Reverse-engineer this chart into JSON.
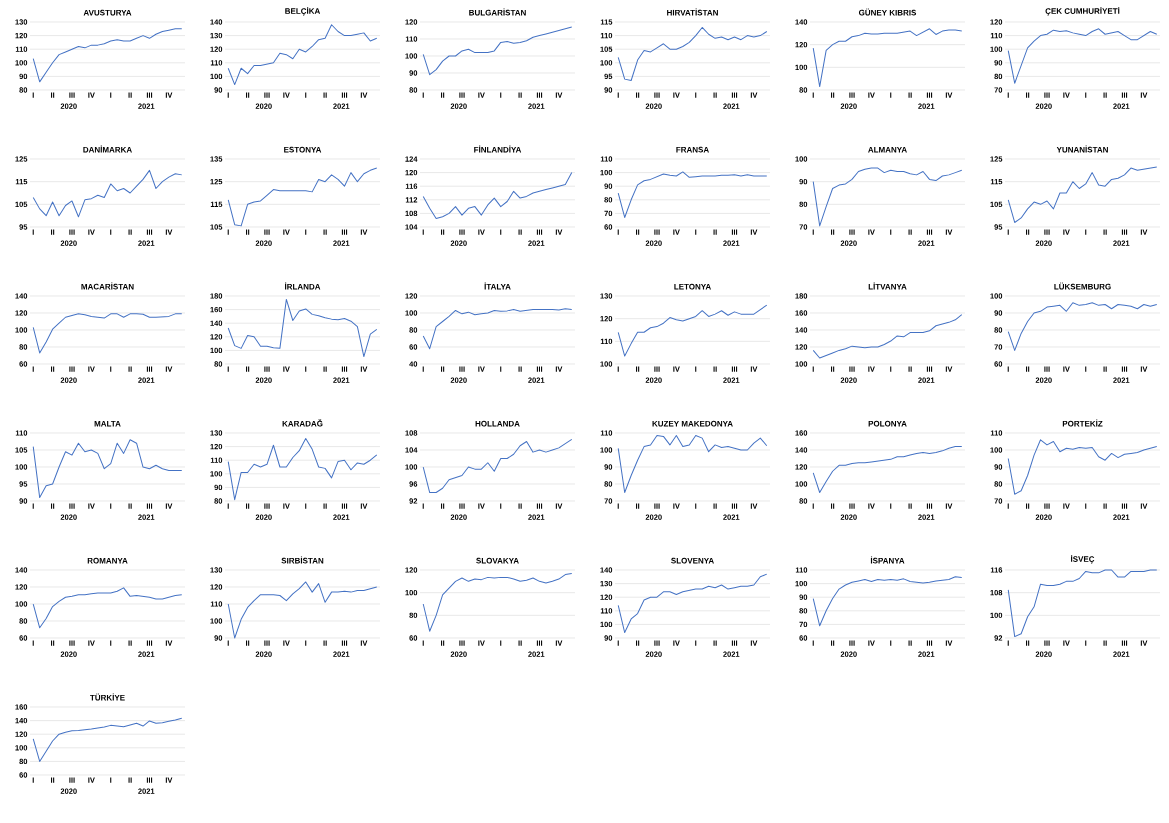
{
  "chart_data": [
    {
      "type": "line",
      "title": "AVUSTURYA",
      "color": "#4472c4",
      "grid": "y",
      "ylim": [
        80,
        130
      ],
      "yticks": [
        80,
        90,
        100,
        110,
        120,
        130
      ],
      "categories": [
        "I",
        null,
        null,
        "II",
        null,
        null,
        "III",
        null,
        null,
        "IV",
        null,
        null,
        "I",
        null,
        null,
        "II",
        null,
        null,
        "III",
        null,
        null,
        "IV",
        null,
        null
      ],
      "annotations": [
        "2020",
        "2021"
      ],
      "values": [
        103,
        86,
        93,
        100,
        106,
        108,
        110,
        112,
        111,
        113,
        113,
        114,
        116,
        117,
        116,
        116,
        118,
        120,
        118,
        121,
        123,
        124,
        125,
        125
      ]
    },
    {
      "type": "line",
      "title": "BELÇİKA",
      "color": "#4472c4",
      "grid": "y",
      "ylim": [
        90,
        140
      ],
      "yticks": [
        90,
        100,
        110,
        120,
        130,
        140
      ],
      "categories": [
        "I",
        null,
        null,
        "II",
        null,
        null,
        "III",
        null,
        null,
        "IV",
        null,
        null,
        "I",
        null,
        null,
        "II",
        null,
        null,
        "III",
        null,
        null,
        "IV",
        null,
        null
      ],
      "annotations": [
        "2020",
        "2021"
      ],
      "values": [
        106,
        94,
        106,
        102,
        108,
        108,
        109,
        110,
        117,
        116,
        113,
        120,
        118,
        122,
        127,
        128,
        138,
        133,
        130,
        130,
        131,
        132,
        126,
        128
      ]
    },
    {
      "type": "line",
      "title": "BULGARİSTAN",
      "color": "#4472c4",
      "grid": "y",
      "ylim": [
        80,
        120
      ],
      "yticks": [
        80,
        90,
        100,
        110,
        120
      ],
      "categories": [
        "I",
        null,
        null,
        "II",
        null,
        null,
        "III",
        null,
        null,
        "IV",
        null,
        null,
        "I",
        null,
        null,
        "II",
        null,
        null,
        "III",
        null,
        null,
        "IV",
        null,
        null
      ],
      "annotations": [
        "2020",
        "2021"
      ],
      "values": [
        101,
        89,
        92,
        97,
        100,
        100,
        103,
        104,
        102,
        102,
        102,
        103,
        108,
        108.5,
        107.5,
        108,
        109,
        111,
        112,
        113,
        114,
        115,
        116,
        117
      ]
    },
    {
      "type": "line",
      "title": "HIRVATİSTAN",
      "color": "#4472c4",
      "grid": "y",
      "ylim": [
        90,
        115
      ],
      "yticks": [
        90,
        95,
        100,
        105,
        110,
        115
      ],
      "categories": [
        "I",
        null,
        null,
        "II",
        null,
        null,
        "III",
        null,
        null,
        "IV",
        null,
        null,
        "I",
        null,
        null,
        "II",
        null,
        null,
        "III",
        null,
        null,
        "IV",
        null,
        null
      ],
      "annotations": [
        "2020",
        "2021"
      ],
      "values": [
        102,
        94,
        93.5,
        101,
        104.5,
        104,
        105.5,
        107,
        105,
        105,
        106,
        107.5,
        110,
        113,
        110.5,
        109,
        109.5,
        108.5,
        109.5,
        108.5,
        110,
        109.5,
        110,
        111.5
      ]
    },
    {
      "type": "line",
      "title": "GÜNEY KIBRIS",
      "color": "#4472c4",
      "grid": "y",
      "ylim": [
        80,
        140
      ],
      "yticks": [
        80,
        100,
        120,
        140
      ],
      "categories": [
        "I",
        null,
        null,
        "II",
        null,
        null,
        "III",
        null,
        null,
        "IV",
        null,
        null,
        "I",
        null,
        null,
        "II",
        null,
        null,
        "III",
        null,
        null,
        "IV",
        null,
        null
      ],
      "annotations": [
        "2020",
        "2021"
      ],
      "values": [
        117,
        83,
        115,
        120,
        123,
        123,
        127,
        128,
        130,
        129.5,
        129.5,
        130,
        130,
        130,
        131,
        132,
        128,
        131,
        134,
        129,
        132,
        133,
        133,
        132
      ]
    },
    {
      "type": "line",
      "title": "ÇEK CUMHURİYETİ",
      "color": "#4472c4",
      "grid": "y",
      "ylim": [
        70,
        120
      ],
      "yticks": [
        70,
        80,
        90,
        100,
        110,
        120
      ],
      "categories": [
        "I",
        null,
        null,
        "II",
        null,
        null,
        "III",
        null,
        null,
        "IV",
        null,
        null,
        "I",
        null,
        null,
        "II",
        null,
        null,
        "III",
        null,
        null,
        "IV",
        null,
        null
      ],
      "annotations": [
        "2020",
        "2021"
      ],
      "values": [
        99,
        75,
        88,
        101,
        106,
        110,
        111,
        114,
        113,
        113.5,
        112,
        111,
        110,
        113,
        115,
        111,
        112,
        113,
        110,
        107,
        107,
        110,
        113,
        111
      ]
    },
    {
      "type": "line",
      "title": "DANİMARKA",
      "color": "#4472c4",
      "grid": "y",
      "ylim": [
        95,
        125
      ],
      "yticks": [
        95,
        105,
        115,
        125
      ],
      "categories": [
        "I",
        null,
        null,
        "II",
        null,
        null,
        "III",
        null,
        null,
        "IV",
        null,
        null,
        "I",
        null,
        null,
        "II",
        null,
        null,
        "III",
        null,
        null,
        "IV",
        null,
        null
      ],
      "annotations": [
        "2020",
        "2021"
      ],
      "values": [
        108,
        103,
        100,
        106,
        100,
        104.5,
        106.5,
        99.5,
        107,
        107.5,
        109,
        108,
        114,
        111,
        112,
        110,
        113,
        116,
        120,
        112,
        115,
        117,
        118.5,
        118
      ]
    },
    {
      "type": "line",
      "title": "ESTONYA",
      "color": "#4472c4",
      "grid": "y",
      "ylim": [
        105,
        135
      ],
      "yticks": [
        105,
        115,
        125,
        135
      ],
      "categories": [
        "I",
        null,
        null,
        "II",
        null,
        null,
        "III",
        null,
        null,
        "IV",
        null,
        null,
        "I",
        null,
        null,
        "II",
        null,
        null,
        "III",
        null,
        null,
        "IV",
        null,
        null
      ],
      "annotations": [
        "2020",
        "2021"
      ],
      "values": [
        117,
        106,
        105.5,
        115,
        116,
        116.5,
        119,
        121.5,
        121,
        121,
        121,
        121,
        121,
        120.5,
        126,
        125,
        128,
        126,
        123,
        129,
        125,
        128.5,
        130,
        131
      ]
    },
    {
      "type": "line",
      "title": "FİNLANDİYA",
      "color": "#4472c4",
      "grid": "y",
      "ylim": [
        104,
        124
      ],
      "yticks": [
        104,
        108,
        112,
        116,
        120,
        124
      ],
      "categories": [
        "I",
        null,
        null,
        "II",
        null,
        null,
        "III",
        null,
        null,
        "IV",
        null,
        null,
        "I",
        null,
        null,
        "II",
        null,
        null,
        "III",
        null,
        null,
        "IV",
        null,
        null
      ],
      "annotations": [
        "2020",
        "2021"
      ],
      "values": [
        113,
        109.5,
        106.5,
        107,
        108,
        110,
        107.5,
        109.5,
        110,
        107.5,
        110.5,
        112.5,
        110,
        111.5,
        114.5,
        112.5,
        113,
        114,
        114.5,
        115,
        115.5,
        116,
        116.5,
        120
      ]
    },
    {
      "type": "line",
      "title": "FRANSA",
      "color": "#4472c4",
      "grid": "y",
      "ylim": [
        60,
        110
      ],
      "yticks": [
        60,
        70,
        80,
        90,
        100,
        110
      ],
      "categories": [
        "I",
        null,
        null,
        "II",
        null,
        null,
        "III",
        null,
        null,
        "IV",
        null,
        null,
        "I",
        null,
        null,
        "II",
        null,
        null,
        "III",
        null,
        null,
        "IV",
        null,
        null
      ],
      "annotations": [
        "2020",
        "2021"
      ],
      "values": [
        85,
        67,
        80,
        91,
        94,
        95,
        97,
        99,
        98,
        97.5,
        100.5,
        96.5,
        97,
        97.5,
        97.5,
        97.5,
        98,
        98,
        98.5,
        97.5,
        98.5,
        97.5,
        97.5,
        97.5
      ]
    },
    {
      "type": "line",
      "title": "ALMANYA",
      "color": "#4472c4",
      "grid": "y",
      "ylim": [
        70,
        100
      ],
      "yticks": [
        70,
        80,
        90,
        100
      ],
      "categories": [
        "I",
        null,
        null,
        "II",
        null,
        null,
        "III",
        null,
        null,
        "IV",
        null,
        null,
        "I",
        null,
        null,
        "II",
        null,
        null,
        "III",
        null,
        null,
        "IV",
        null,
        null
      ],
      "annotations": [
        "2020",
        "2021"
      ],
      "values": [
        90,
        70.5,
        79,
        87,
        88.5,
        89,
        91,
        94.5,
        95.5,
        96,
        96,
        94,
        95,
        94.5,
        94.5,
        93.5,
        93,
        94.5,
        91,
        90.5,
        92.5,
        93,
        94,
        95
      ]
    },
    {
      "type": "line",
      "title": "YUNANİSTAN",
      "color": "#4472c4",
      "grid": "y",
      "ylim": [
        95,
        125
      ],
      "yticks": [
        95,
        105,
        115,
        125
      ],
      "categories": [
        "I",
        null,
        null,
        "II",
        null,
        null,
        "III",
        null,
        null,
        "IV",
        null,
        null,
        "I",
        null,
        null,
        "II",
        null,
        null,
        "III",
        null,
        null,
        "IV",
        null,
        null
      ],
      "annotations": [
        "2020",
        "2021"
      ],
      "values": [
        107,
        97,
        99,
        103,
        106,
        105,
        106.5,
        103,
        110,
        110,
        115,
        112,
        114,
        119,
        113.5,
        113,
        116,
        116.5,
        118,
        121,
        120,
        120.5,
        121,
        121.5
      ]
    },
    {
      "type": "line",
      "title": "MACARİSTAN",
      "color": "#4472c4",
      "grid": "y",
      "ylim": [
        60,
        140
      ],
      "yticks": [
        60,
        80,
        100,
        120,
        140
      ],
      "categories": [
        "I",
        null,
        null,
        "II",
        null,
        null,
        "III",
        null,
        null,
        "IV",
        null,
        null,
        "I",
        null,
        null,
        "II",
        null,
        null,
        "III",
        null,
        null,
        "IV",
        null,
        null
      ],
      "annotations": [
        "2020",
        "2021"
      ],
      "values": [
        103,
        73,
        86,
        101,
        108,
        115,
        117,
        119,
        118,
        116,
        115,
        114,
        119,
        119,
        115,
        119,
        119,
        118.5,
        115,
        115,
        115.5,
        116,
        119,
        119
      ]
    },
    {
      "type": "line",
      "title": "İRLANDA",
      "color": "#4472c4",
      "grid": "y",
      "ylim": [
        80,
        180
      ],
      "yticks": [
        80,
        100,
        120,
        140,
        160,
        180
      ],
      "categories": [
        "I",
        null,
        null,
        "II",
        null,
        null,
        "III",
        null,
        null,
        "IV",
        null,
        null,
        "I",
        null,
        null,
        "II",
        null,
        null,
        "III",
        null,
        null,
        "IV",
        null,
        null
      ],
      "annotations": [
        "2020",
        "2021"
      ],
      "values": [
        133,
        107,
        103,
        122,
        120,
        106,
        106,
        104,
        103,
        175,
        144,
        158,
        161,
        153,
        151,
        148,
        146,
        145,
        147,
        143,
        135,
        91,
        124,
        131
      ]
    },
    {
      "type": "line",
      "title": "İTALYA",
      "color": "#4472c4",
      "grid": "y",
      "ylim": [
        40,
        120
      ],
      "yticks": [
        40,
        60,
        80,
        100,
        120
      ],
      "categories": [
        "I",
        null,
        null,
        "II",
        null,
        null,
        "III",
        null,
        null,
        "IV",
        null,
        null,
        "I",
        null,
        null,
        "II",
        null,
        null,
        "III",
        null,
        null,
        "IV",
        null,
        null
      ],
      "annotations": [
        "2020",
        "2021"
      ],
      "values": [
        73,
        58,
        84,
        90,
        96,
        103,
        99,
        101,
        98,
        99,
        100,
        103,
        102,
        102.5,
        104,
        102,
        103,
        104,
        104,
        104,
        104,
        103.5,
        105,
        104
      ]
    },
    {
      "type": "line",
      "title": "LETONYA",
      "color": "#4472c4",
      "grid": "y",
      "ylim": [
        100,
        130
      ],
      "yticks": [
        100,
        110,
        120,
        130
      ],
      "categories": [
        "I",
        null,
        null,
        "II",
        null,
        null,
        "III",
        null,
        null,
        "IV",
        null,
        null,
        "I",
        null,
        null,
        "II",
        null,
        null,
        "III",
        null,
        null,
        "IV",
        null,
        null
      ],
      "annotations": [
        "2020",
        "2021"
      ],
      "values": [
        114,
        103.5,
        109,
        114,
        114,
        116,
        116.5,
        118,
        120.5,
        119.5,
        119,
        120,
        121,
        123.5,
        121,
        122,
        123.5,
        121.5,
        123,
        122,
        122,
        122,
        124,
        126
      ]
    },
    {
      "type": "line",
      "title": "LİTVANYA",
      "color": "#4472c4",
      "grid": "y",
      "ylim": [
        100,
        180
      ],
      "yticks": [
        100,
        120,
        140,
        160,
        180
      ],
      "categories": [
        "I",
        null,
        null,
        "II",
        null,
        null,
        "III",
        null,
        null,
        "IV",
        null,
        null,
        "I",
        null,
        null,
        "II",
        null,
        null,
        "III",
        null,
        null,
        "IV",
        null,
        null
      ],
      "annotations": [
        "2020",
        "2021"
      ],
      "values": [
        116,
        107,
        110,
        113,
        116,
        118,
        121,
        120,
        119,
        120,
        120,
        123,
        127,
        133,
        132,
        137,
        137,
        137,
        139,
        145,
        147,
        149,
        152,
        158
      ]
    },
    {
      "type": "line",
      "title": "LÜKSEMBURG",
      "color": "#4472c4",
      "grid": "y",
      "ylim": [
        60,
        100
      ],
      "yticks": [
        60,
        70,
        80,
        90,
        100
      ],
      "categories": [
        "I",
        null,
        null,
        "II",
        null,
        null,
        "III",
        null,
        null,
        "IV",
        null,
        null,
        "I",
        null,
        null,
        "II",
        null,
        null,
        "III",
        null,
        null,
        "IV",
        null,
        null
      ],
      "annotations": [
        "2020",
        "2021"
      ],
      "values": [
        79,
        68,
        78,
        85,
        90,
        91,
        93.5,
        94,
        94.5,
        91,
        96,
        94.5,
        95,
        96,
        94.5,
        95,
        92.5,
        95,
        94.5,
        94,
        92.5,
        95,
        94,
        95
      ]
    },
    {
      "type": "line",
      "title": "MALTA",
      "color": "#4472c4",
      "grid": "y",
      "ylim": [
        90,
        110
      ],
      "yticks": [
        90,
        95,
        100,
        105,
        110
      ],
      "categories": [
        "I",
        null,
        null,
        "II",
        null,
        null,
        "III",
        null,
        null,
        "IV",
        null,
        null,
        "I",
        null,
        null,
        "II",
        null,
        null,
        "III",
        null,
        null,
        "IV",
        null,
        null
      ],
      "annotations": [
        "2020",
        "2021"
      ],
      "values": [
        106,
        91,
        94.5,
        95,
        100,
        104.5,
        103.5,
        107,
        104.5,
        105,
        104,
        99.5,
        101,
        107,
        104,
        108,
        107,
        100,
        99.5,
        100.5,
        99.5,
        99,
        99,
        99
      ]
    },
    {
      "type": "line",
      "title": "KARADAĞ",
      "color": "#4472c4",
      "grid": "y",
      "ylim": [
        80,
        130
      ],
      "yticks": [
        80,
        90,
        100,
        110,
        120,
        130
      ],
      "categories": [
        "I",
        null,
        null,
        "II",
        null,
        null,
        "III",
        null,
        null,
        "IV",
        null,
        null,
        "I",
        null,
        null,
        "II",
        null,
        null,
        "III",
        null,
        null,
        "IV",
        null,
        null
      ],
      "annotations": [
        "2020",
        "2021"
      ],
      "values": [
        109,
        81,
        101,
        101,
        107,
        105,
        107,
        121,
        105,
        105,
        112,
        117,
        126,
        118,
        105,
        104,
        97,
        109,
        110,
        103,
        108,
        107,
        110,
        114
      ]
    },
    {
      "type": "line",
      "title": "HOLLANDA",
      "color": "#4472c4",
      "grid": "y",
      "ylim": [
        92,
        108
      ],
      "yticks": [
        92,
        96,
        100,
        104,
        108
      ],
      "categories": [
        "I",
        null,
        null,
        "II",
        null,
        null,
        "III",
        null,
        null,
        "IV",
        null,
        null,
        "I",
        null,
        null,
        "II",
        null,
        null,
        "III",
        null,
        null,
        "IV",
        null,
        null
      ],
      "annotations": [
        "2020",
        "2021"
      ],
      "values": [
        100,
        94,
        94,
        95,
        97,
        97.5,
        98,
        100,
        99.5,
        99.5,
        101,
        99,
        102,
        102,
        103,
        105,
        106,
        103.5,
        104,
        103.5,
        104,
        104.5,
        105.5,
        106.5
      ]
    },
    {
      "type": "line",
      "title": "KUZEY MAKEDONYA",
      "color": "#4472c4",
      "grid": "y",
      "ylim": [
        70,
        110
      ],
      "yticks": [
        70,
        80,
        90,
        100,
        110
      ],
      "categories": [
        "I",
        null,
        null,
        "II",
        null,
        null,
        "III",
        null,
        null,
        "IV",
        null,
        null,
        "I",
        null,
        null,
        "II",
        null,
        null,
        "III",
        null,
        null,
        "IV",
        null,
        null
      ],
      "annotations": [
        "2020",
        "2021"
      ],
      "values": [
        101,
        75,
        85,
        94,
        102,
        103,
        108.5,
        108,
        103,
        108.5,
        102,
        103,
        108.5,
        107,
        99,
        103,
        101.5,
        102,
        101,
        100,
        100,
        104,
        107,
        102.5
      ]
    },
    {
      "type": "line",
      "title": "POLONYA",
      "color": "#4472c4",
      "grid": "y",
      "ylim": [
        80,
        160
      ],
      "yticks": [
        80,
        100,
        120,
        140,
        160
      ],
      "categories": [
        "I",
        null,
        null,
        "II",
        null,
        null,
        "III",
        null,
        null,
        "IV",
        null,
        null,
        "I",
        null,
        null,
        "II",
        null,
        null,
        "III",
        null,
        null,
        "IV",
        null,
        null
      ],
      "annotations": [
        "2020",
        "2021"
      ],
      "values": [
        113,
        90,
        103,
        115,
        122,
        122,
        124,
        125,
        125,
        126,
        127,
        128,
        129,
        132,
        132,
        134,
        136,
        137,
        136,
        137,
        139,
        142,
        144,
        144
      ]
    },
    {
      "type": "line",
      "title": "PORTEKİZ",
      "color": "#4472c4",
      "grid": "y",
      "ylim": [
        70,
        110
      ],
      "yticks": [
        70,
        80,
        90,
        100,
        110
      ],
      "categories": [
        "I",
        null,
        null,
        "II",
        null,
        null,
        "III",
        null,
        null,
        "IV",
        null,
        null,
        "I",
        null,
        null,
        "II",
        null,
        null,
        "III",
        null,
        null,
        "IV",
        null,
        null
      ],
      "annotations": [
        "2020",
        "2021"
      ],
      "values": [
        95,
        74,
        76,
        85,
        97,
        106,
        103,
        105,
        99,
        101,
        100.5,
        101.5,
        101,
        101.5,
        96,
        94,
        98,
        95.5,
        97.5,
        98,
        98.5,
        100,
        101,
        102
      ]
    },
    {
      "type": "line",
      "title": "ROMANYA",
      "color": "#4472c4",
      "grid": "y",
      "ylim": [
        60,
        140
      ],
      "yticks": [
        60,
        80,
        100,
        120,
        140
      ],
      "categories": [
        "I",
        null,
        null,
        "II",
        null,
        null,
        "III",
        null,
        null,
        "IV",
        null,
        null,
        "I",
        null,
        null,
        "II",
        null,
        null,
        "III",
        null,
        null,
        "IV",
        null,
        null
      ],
      "annotations": [
        "2020",
        "2021"
      ],
      "values": [
        100,
        72,
        83,
        97,
        103,
        108,
        109,
        111,
        111,
        112,
        113,
        113,
        113,
        115,
        119,
        109,
        110,
        109,
        108,
        106,
        106,
        108,
        110,
        111
      ]
    },
    {
      "type": "line",
      "title": "SIRBİSTAN",
      "color": "#4472c4",
      "grid": "y",
      "ylim": [
        90,
        130
      ],
      "yticks": [
        90,
        100,
        110,
        120,
        130
      ],
      "categories": [
        "I",
        null,
        null,
        "II",
        null,
        null,
        "III",
        null,
        null,
        "IV",
        null,
        null,
        "I",
        null,
        null,
        "II",
        null,
        null,
        "III",
        null,
        null,
        "IV",
        null,
        null
      ],
      "annotations": [
        "2020",
        "2021"
      ],
      "values": [
        110,
        90,
        101,
        108,
        112,
        115.5,
        115.5,
        115.5,
        115,
        112,
        116,
        119,
        123,
        117,
        122,
        111,
        117,
        117,
        117.5,
        117,
        118,
        118,
        119,
        120
      ]
    },
    {
      "type": "line",
      "title": "SLOVAKYA",
      "color": "#4472c4",
      "grid": "y",
      "ylim": [
        60,
        120
      ],
      "yticks": [
        60,
        80,
        100,
        120
      ],
      "categories": [
        "I",
        null,
        null,
        "II",
        null,
        null,
        "III",
        null,
        null,
        "IV",
        null,
        null,
        "I",
        null,
        null,
        "II",
        null,
        null,
        "III",
        null,
        null,
        "IV",
        null,
        null
      ],
      "annotations": [
        "2020",
        "2021"
      ],
      "values": [
        90,
        66,
        80,
        98,
        104,
        110,
        113,
        110,
        112,
        111.5,
        113.5,
        113,
        113.5,
        113.5,
        112,
        110,
        111,
        113,
        110,
        108.5,
        110,
        112,
        116,
        117
      ]
    },
    {
      "type": "line",
      "title": "SLOVENYA",
      "color": "#4472c4",
      "grid": "y",
      "ylim": [
        90,
        140
      ],
      "yticks": [
        90,
        100,
        110,
        120,
        130,
        140
      ],
      "categories": [
        "I",
        null,
        null,
        "II",
        null,
        null,
        "III",
        null,
        null,
        "IV",
        null,
        null,
        "I",
        null,
        null,
        "II",
        null,
        null,
        "III",
        null,
        null,
        "IV",
        null,
        null
      ],
      "annotations": [
        "2020",
        "2021"
      ],
      "values": [
        114,
        94,
        104,
        108,
        118,
        120,
        120,
        124,
        124,
        122,
        124,
        125,
        126,
        126,
        128,
        127,
        129,
        126,
        127,
        128,
        128,
        129,
        135,
        137
      ]
    },
    {
      "type": "line",
      "title": "İSPANYA",
      "color": "#4472c4",
      "grid": "y",
      "ylim": [
        60,
        110
      ],
      "yticks": [
        60,
        70,
        80,
        90,
        100,
        110
      ],
      "categories": [
        "I",
        null,
        null,
        "II",
        null,
        null,
        "III",
        null,
        null,
        "IV",
        null,
        null,
        "I",
        null,
        null,
        "II",
        null,
        null,
        "III",
        null,
        null,
        "IV",
        null,
        null
      ],
      "annotations": [
        "2020",
        "2021"
      ],
      "values": [
        89,
        69,
        80,
        89,
        96,
        99,
        101,
        102,
        103,
        101.5,
        103,
        102.5,
        103,
        102.5,
        103.5,
        101.5,
        101,
        100.5,
        101,
        102,
        102.5,
        103,
        105,
        104.5
      ]
    },
    {
      "type": "line",
      "title": "İSVEÇ",
      "color": "#4472c4",
      "grid": "y",
      "ylim": [
        92,
        116
      ],
      "yticks": [
        92,
        100,
        108,
        116
      ],
      "categories": [
        "I",
        null,
        null,
        "II",
        null,
        null,
        "III",
        null,
        null,
        "IV",
        null,
        null,
        "I",
        null,
        null,
        "II",
        null,
        null,
        "III",
        null,
        null,
        "IV",
        null,
        null
      ],
      "annotations": [
        "2020",
        "2021"
      ],
      "values": [
        109,
        92.5,
        93.5,
        99.5,
        103,
        111,
        110.5,
        110.5,
        111,
        112,
        112,
        113,
        115.5,
        115,
        115,
        116,
        116,
        113.5,
        113.5,
        115.5,
        115.5,
        115.5,
        116,
        116
      ]
    },
    {
      "type": "line",
      "title": "TÜRKİYE",
      "color": "#4472c4",
      "grid": "y",
      "ylim": [
        60,
        160
      ],
      "yticks": [
        60,
        80,
        100,
        120,
        140,
        160
      ],
      "categories": [
        "I",
        null,
        null,
        "II",
        null,
        null,
        "III",
        null,
        null,
        "IV",
        null,
        null,
        "I",
        null,
        null,
        "II",
        null,
        null,
        "III",
        null,
        null,
        "IV",
        null,
        null
      ],
      "annotations": [
        "2020",
        "2021"
      ],
      "values": [
        113,
        80,
        95,
        110,
        120,
        123,
        125,
        125.5,
        126.5,
        127.5,
        129,
        130.5,
        133,
        132,
        131,
        133.5,
        136,
        132,
        139.5,
        136,
        137,
        139,
        141,
        143.5
      ]
    }
  ]
}
